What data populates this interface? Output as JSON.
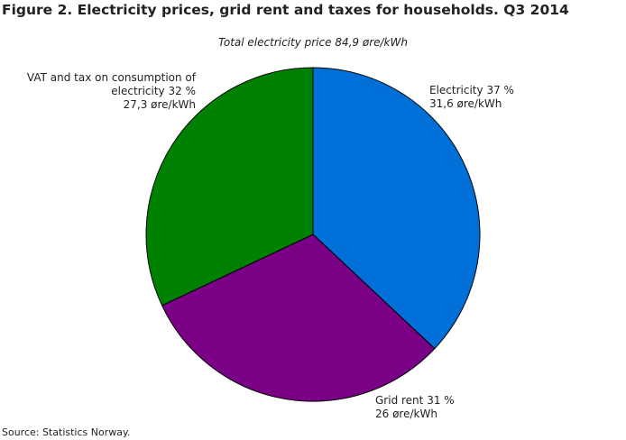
{
  "chart_data": {
    "type": "pie",
    "title": "Figure 2. Electricity prices, grid rent and taxes for households. Q3 2014",
    "subtitle": "Total electricity price 84,9 øre/kWh",
    "categories": [
      "Electricity",
      "Grid rent",
      "VAT and tax on consumption of electricity"
    ],
    "values": [
      37,
      31,
      32
    ],
    "value_labels": [
      "37 %",
      "31 %",
      "32 %"
    ],
    "price_labels": [
      "31,6 øre/kWh",
      "26 øre/kWh",
      "27,3 øre/kWh"
    ],
    "colors": [
      "#0070d8",
      "#7a0085",
      "#008000"
    ],
    "source": "Source: Statistics Norway."
  }
}
